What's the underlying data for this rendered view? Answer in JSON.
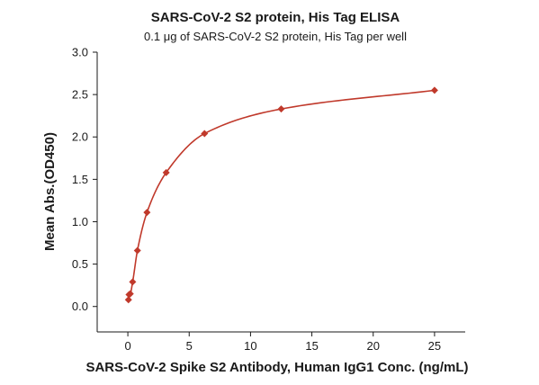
{
  "chart_data": {
    "type": "scatter",
    "title": "SARS-CoV-2 S2 protein, His Tag ELISA",
    "subtitle": "0.1 μg of SARS-CoV-2 S2 protein, His Tag per well",
    "xlabel": "SARS-CoV-2 Spike S2 Antibody, Human IgG1 Conc. (ng/mL)",
    "ylabel": "Mean Abs.(OD450)",
    "xlim": [
      -2.5,
      27.5
    ],
    "ylim": [
      -0.3,
      3.0
    ],
    "x_ticks": [
      "0",
      "5",
      "10",
      "15",
      "20",
      "25"
    ],
    "y_ticks": [
      "0.0",
      "0.5",
      "1.0",
      "1.5",
      "2.0",
      "2.5",
      "3.0"
    ],
    "grid": false,
    "series": [
      {
        "values": [
          {
            "x": 0.049,
            "y": 0.08
          },
          {
            "x": 0.098,
            "y": 0.14
          },
          {
            "x": 0.195,
            "y": 0.15
          },
          {
            "x": 0.39,
            "y": 0.29
          },
          {
            "x": 0.78,
            "y": 0.66
          },
          {
            "x": 1.56,
            "y": 1.11
          },
          {
            "x": 3.125,
            "y": 1.58
          },
          {
            "x": 6.25,
            "y": 2.04
          },
          {
            "x": 12.5,
            "y": 2.33
          },
          {
            "x": 25,
            "y": 2.55
          }
        ],
        "color": "#c0392b",
        "marker": "diamond",
        "fit_curve": true
      }
    ]
  }
}
